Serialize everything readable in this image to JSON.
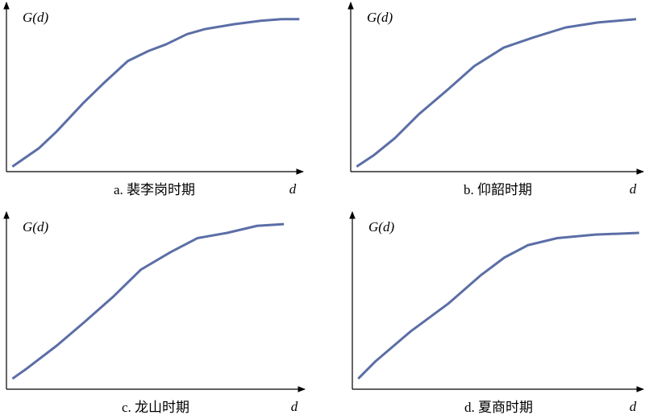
{
  "chart_data": [
    {
      "type": "line",
      "title": "a. 裴李岗时期",
      "y_label": "G(d)",
      "x_label": "d",
      "xlim": [
        0,
        1
      ],
      "ylim": [
        0,
        1
      ],
      "series": [
        {
          "color": "#5b6ea6",
          "x": [
            0.02,
            0.11,
            0.17,
            0.26,
            0.33,
            0.41,
            0.48,
            0.54,
            0.61,
            0.67,
            0.77,
            0.86,
            0.93,
            0.99
          ],
          "values": [
            0.03,
            0.14,
            0.24,
            0.41,
            0.53,
            0.66,
            0.72,
            0.76,
            0.82,
            0.85,
            0.88,
            0.9,
            0.91,
            0.91
          ]
        }
      ]
    },
    {
      "type": "line",
      "title": "b. 仰韶时期",
      "y_label": "G(d)",
      "x_label": "d",
      "xlim": [
        0,
        1
      ],
      "ylim": [
        0,
        1
      ],
      "series": [
        {
          "color": "#5b6ea6",
          "x": [
            0.02,
            0.08,
            0.15,
            0.23,
            0.33,
            0.42,
            0.52,
            0.62,
            0.73,
            0.84,
            0.97
          ],
          "values": [
            0.03,
            0.1,
            0.2,
            0.34,
            0.49,
            0.63,
            0.74,
            0.8,
            0.86,
            0.89,
            0.91
          ]
        }
      ]
    },
    {
      "type": "line",
      "title": "c. 龙山时期",
      "y_label": "G(d)",
      "x_label": "d",
      "xlim": [
        0,
        1
      ],
      "ylim": [
        0,
        1
      ],
      "series": [
        {
          "color": "#5b6ea6",
          "x": [
            0.02,
            0.07,
            0.17,
            0.26,
            0.36,
            0.45,
            0.55,
            0.64,
            0.74,
            0.84,
            0.93
          ],
          "values": [
            0.06,
            0.12,
            0.25,
            0.38,
            0.53,
            0.68,
            0.78,
            0.86,
            0.89,
            0.93,
            0.94
          ]
        }
      ]
    },
    {
      "type": "line",
      "title": "d. 夏商时期",
      "y_label": "G(d)",
      "x_label": "d",
      "xlim": [
        0,
        1
      ],
      "ylim": [
        0,
        1
      ],
      "series": [
        {
          "color": "#5b6ea6",
          "x": [
            0.02,
            0.08,
            0.2,
            0.33,
            0.44,
            0.52,
            0.6,
            0.7,
            0.83,
            0.98
          ],
          "values": [
            0.06,
            0.16,
            0.33,
            0.49,
            0.65,
            0.75,
            0.82,
            0.86,
            0.88,
            0.89
          ]
        }
      ]
    }
  ]
}
